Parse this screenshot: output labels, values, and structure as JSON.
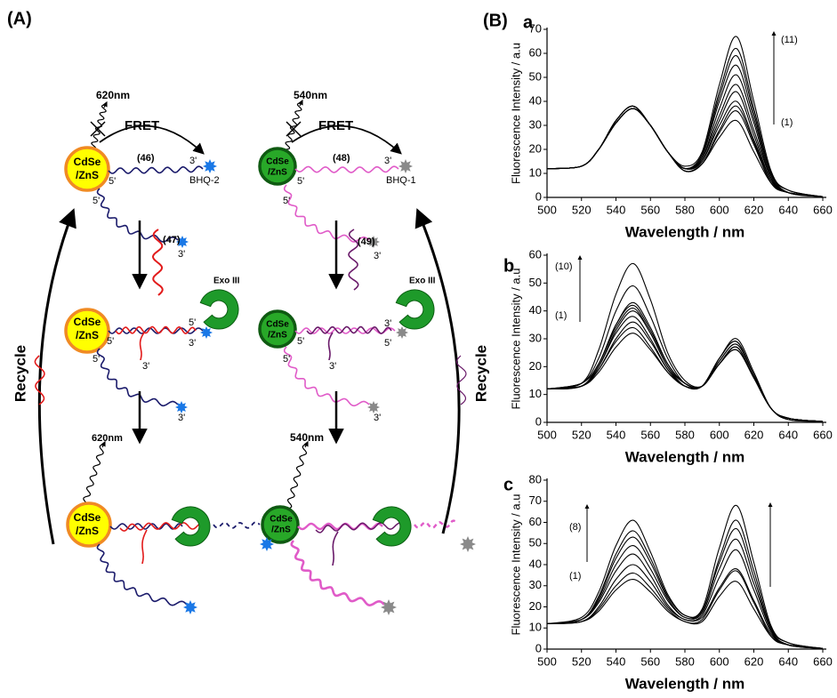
{
  "panel_a": {
    "label": "(A)",
    "cdse": "CdSe",
    "zns": "/ZnS",
    "prime3": "3'",
    "prime5": "5'",
    "fret": "FRET",
    "exo": "Exo III",
    "recycle": "Recycle",
    "left": {
      "emission_top": "620nm",
      "probe": "(46)",
      "quencher": "BHQ-2",
      "target": "(47)",
      "emission_bottom": "620nm"
    },
    "right": {
      "emission_top": "540nm",
      "probe": "(48)",
      "quencher": "BHQ-1",
      "target": "(49)",
      "emission_bottom": "540nm"
    }
  },
  "panel_b_label": "(B)",
  "chart_data": [
    {
      "type": "line",
      "label": "a",
      "xlabel": "Wavelength / nm",
      "ylabel": "Fluorescence Intensity / a.u",
      "annotations": [
        "(11)",
        "(1)"
      ],
      "x": [
        500,
        520,
        530,
        540,
        550,
        560,
        570,
        580,
        590,
        600,
        610,
        620,
        630,
        640,
        660
      ],
      "xlim": [
        500,
        660
      ],
      "xticks": [
        500,
        520,
        540,
        560,
        580,
        600,
        620,
        640,
        660
      ],
      "ylim": [
        0,
        70
      ],
      "yticks": [
        0,
        10,
        20,
        30,
        40,
        50,
        60,
        70
      ],
      "series": [
        {
          "color": "#000000",
          "values": [
            12,
            13,
            20,
            31,
            37,
            30,
            19,
            11,
            14,
            25,
            32,
            19,
            6,
            2,
            0.3
          ]
        },
        {
          "color": "#000000",
          "values": [
            12,
            13,
            20,
            31,
            37,
            30,
            19,
            11,
            14,
            27,
            36,
            22,
            6,
            2,
            0.3
          ]
        },
        {
          "color": "#000000",
          "values": [
            12,
            13,
            20,
            31,
            37,
            30,
            19,
            11,
            14,
            28,
            38,
            23,
            6,
            2,
            0.3
          ]
        },
        {
          "color": "#000000",
          "values": [
            12,
            13,
            20,
            31,
            37,
            30,
            19,
            12,
            15,
            30,
            40,
            24,
            7,
            2,
            0.3
          ]
        },
        {
          "color": "#000000",
          "values": [
            12,
            13,
            20,
            31,
            37,
            30,
            19,
            12,
            15,
            32,
            44,
            26,
            7,
            2,
            0.3
          ]
        },
        {
          "color": "#000000",
          "values": [
            12,
            13,
            20,
            31,
            37,
            30,
            19,
            12,
            16,
            34,
            47,
            28,
            8,
            2,
            0.3
          ]
        },
        {
          "color": "#000000",
          "values": [
            12,
            13,
            20,
            32,
            38,
            30,
            19,
            12,
            16,
            37,
            51,
            31,
            8,
            2,
            0.3
          ]
        },
        {
          "color": "#000000",
          "values": [
            12,
            13,
            20,
            32,
            38,
            30,
            19,
            12,
            17,
            40,
            55,
            33,
            9,
            2,
            0.3
          ]
        },
        {
          "color": "#000000",
          "values": [
            12,
            13,
            20,
            32,
            38,
            30,
            19,
            12,
            18,
            42,
            59,
            35,
            10,
            2,
            0.3
          ]
        },
        {
          "color": "#000000",
          "values": [
            12,
            13,
            20,
            32,
            38,
            30,
            19,
            12,
            18,
            44,
            62,
            37,
            10,
            3,
            0.3
          ]
        },
        {
          "color": "#000000",
          "values": [
            12,
            13,
            20,
            32,
            38,
            30,
            19,
            13,
            19,
            47,
            67,
            40,
            11,
            3,
            0.3
          ]
        }
      ]
    },
    {
      "type": "line",
      "label": "b",
      "xlabel": "Wavelength / nm",
      "ylabel": "Fluorescence Intensity / a.u",
      "annotations": [
        "(10)",
        "(1)"
      ],
      "x": [
        500,
        520,
        530,
        540,
        550,
        560,
        570,
        580,
        590,
        600,
        610,
        620,
        630,
        640,
        660
      ],
      "xlim": [
        500,
        660
      ],
      "xticks": [
        500,
        520,
        540,
        560,
        580,
        600,
        620,
        640,
        660
      ],
      "ylim": [
        0,
        60
      ],
      "yticks": [
        0,
        10,
        20,
        30,
        40,
        50,
        60
      ],
      "series": [
        {
          "color": "#000000",
          "values": [
            12,
            13,
            18,
            27,
            32,
            26,
            18,
            13,
            13,
            21,
            26,
            16,
            5,
            1,
            0.3
          ]
        },
        {
          "color": "#000000",
          "values": [
            12,
            13,
            19,
            29,
            34,
            27,
            18,
            13,
            13,
            21,
            27,
            16,
            5,
            1.5,
            0.3
          ]
        },
        {
          "color": "#000000",
          "values": [
            12,
            13,
            19,
            30,
            36,
            29,
            19,
            13,
            13,
            22,
            28,
            17,
            5,
            1.5,
            0.3
          ]
        },
        {
          "color": "#000000",
          "values": [
            12,
            13,
            20,
            32,
            38,
            30,
            19,
            13,
            13,
            23,
            29,
            17,
            5,
            1.5,
            0.3
          ]
        },
        {
          "color": "#000000",
          "values": [
            12,
            13,
            20,
            33,
            40,
            32,
            20,
            13,
            13,
            23,
            29,
            17,
            5,
            1.5,
            0.3
          ]
        },
        {
          "color": "#000000",
          "values": [
            12,
            13,
            21,
            34,
            41,
            32,
            20,
            14,
            13,
            23,
            30,
            18,
            5,
            1.5,
            0.3
          ]
        },
        {
          "color": "#000000",
          "values": [
            12,
            14,
            21,
            35,
            42,
            33,
            21,
            14,
            13,
            22,
            28,
            17,
            5,
            1.5,
            0.3
          ]
        },
        {
          "color": "#000000",
          "values": [
            12,
            14,
            21,
            35,
            43,
            34,
            21,
            14,
            13,
            21,
            27,
            16,
            5,
            1.5,
            0.3
          ]
        },
        {
          "color": "#000000",
          "values": [
            12,
            14,
            23,
            40,
            49,
            38,
            23,
            14,
            13,
            21,
            27,
            16,
            5,
            1.5,
            0.3
          ]
        },
        {
          "color": "#000000",
          "values": [
            12,
            14,
            26,
            46,
            57,
            44,
            25,
            15,
            13,
            21,
            26,
            16,
            5,
            1,
            0.3
          ]
        }
      ]
    },
    {
      "type": "line",
      "label": "c",
      "xlabel": "Wavelength / nm",
      "ylabel": "Fluorescence Intensity / a.u",
      "annotations": [
        "(8)",
        "(1)"
      ],
      "x": [
        500,
        520,
        530,
        540,
        550,
        560,
        570,
        580,
        590,
        600,
        610,
        620,
        630,
        640,
        660
      ],
      "xlim": [
        500,
        660
      ],
      "xticks": [
        500,
        520,
        540,
        560,
        580,
        600,
        620,
        640,
        660
      ],
      "ylim": [
        0,
        80
      ],
      "yticks": [
        0,
        10,
        20,
        30,
        40,
        50,
        60,
        70,
        80
      ],
      "series": [
        {
          "color": "#000000",
          "values": [
            12,
            13,
            18,
            28,
            33,
            27,
            18,
            13,
            13,
            25,
            32,
            19,
            6,
            2,
            0.3
          ]
        },
        {
          "color": "#000000",
          "values": [
            12,
            13,
            19,
            30,
            36,
            29,
            19,
            13,
            14,
            28,
            37,
            22,
            6,
            2,
            0.3
          ]
        },
        {
          "color": "#000000",
          "values": [
            12,
            13,
            20,
            33,
            40,
            32,
            20,
            14,
            15,
            29,
            38,
            23,
            7,
            2,
            0.3
          ]
        },
        {
          "color": "#000000",
          "values": [
            12,
            14,
            22,
            37,
            45,
            35,
            21,
            14,
            16,
            34,
            47,
            28,
            8,
            2,
            0.3
          ]
        },
        {
          "color": "#000000",
          "values": [
            12,
            14,
            23,
            40,
            49,
            38,
            23,
            15,
            17,
            38,
            52,
            31,
            9,
            2,
            0.3
          ]
        },
        {
          "color": "#000000",
          "values": [
            12,
            14,
            24,
            43,
            53,
            41,
            24,
            15,
            18,
            41,
            57,
            34,
            9,
            2,
            0.3
          ]
        },
        {
          "color": "#000000",
          "values": [
            12,
            14,
            25,
            45,
            56,
            43,
            25,
            16,
            18,
            43,
            61,
            37,
            10,
            3,
            0.3
          ]
        },
        {
          "color": "#000000",
          "values": [
            12,
            15,
            27,
            49,
            61,
            46,
            26,
            16,
            19,
            48,
            68,
            41,
            11,
            3,
            0.3
          ]
        }
      ]
    }
  ]
}
